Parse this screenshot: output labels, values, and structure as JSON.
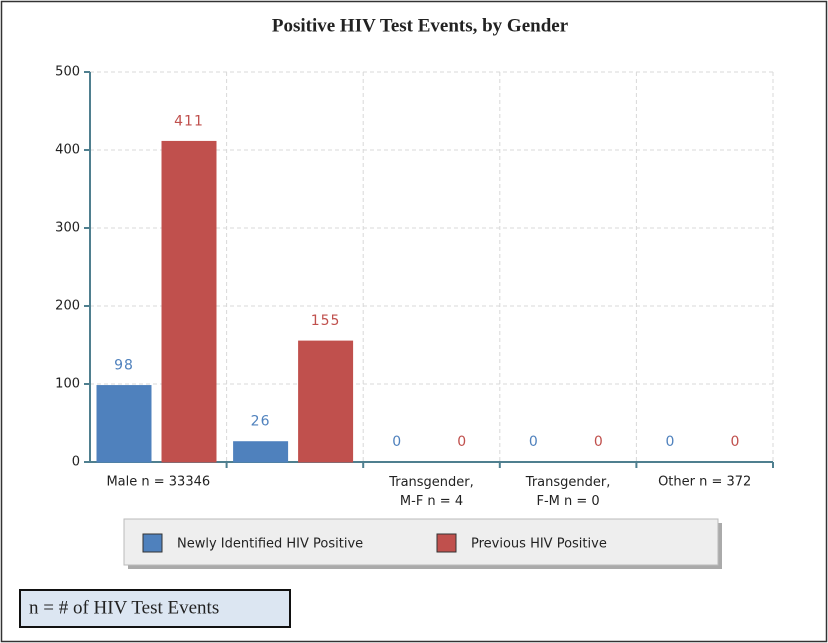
{
  "chart_data": {
    "type": "bar",
    "title": "Positive HIV Test Events, by Gender",
    "categories": [
      "Male n = 33346",
      null,
      "Transgender, M-F n = 4",
      "Transgender, F-M n = 0",
      "Other n = 372"
    ],
    "series": [
      {
        "name": "Newly Identified HIV Positive",
        "color": "#4f81bd",
        "values": [
          98,
          26,
          0,
          0,
          0
        ]
      },
      {
        "name": "Previous HIV Positive",
        "color": "#c0504d",
        "values": [
          411,
          155,
          0,
          0,
          0
        ]
      }
    ],
    "ylim": [
      0,
      500
    ],
    "yticks": [
      0,
      100,
      200,
      300,
      400,
      500
    ],
    "grid": true,
    "annotation": "n = # of HIV Test Events"
  }
}
